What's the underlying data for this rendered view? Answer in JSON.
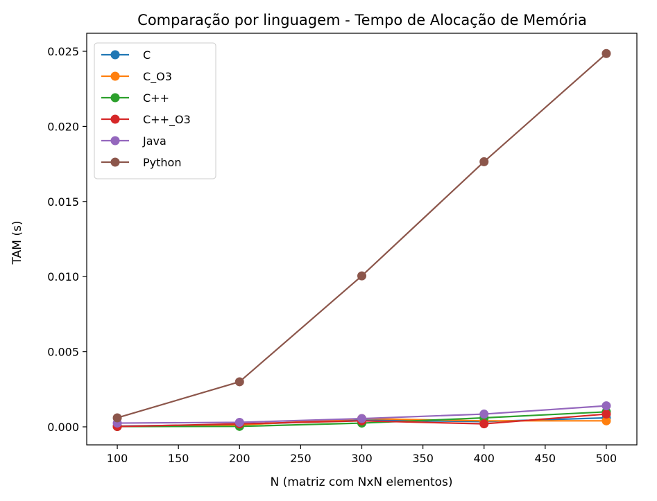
{
  "chart_data": {
    "type": "line",
    "title": "Comparação por linguagem - Tempo de Alocação de Memória",
    "xlabel": "N (matriz com NxN elementos)",
    "ylabel": "TAM (s)",
    "x": [
      100,
      200,
      300,
      400,
      500
    ],
    "xlim": [
      75,
      525
    ],
    "ylim": [
      -0.0012,
      0.0262
    ],
    "xticks": [
      100,
      150,
      200,
      250,
      300,
      350,
      400,
      450,
      500
    ],
    "yticks": [
      0.0,
      0.005,
      0.01,
      0.015,
      0.02,
      0.025
    ],
    "ytick_labels": [
      "0.000",
      "0.005",
      "0.010",
      "0.015",
      "0.020",
      "0.025"
    ],
    "grid": false,
    "legend_position": "upper-left",
    "series": [
      {
        "name": "C",
        "color": "#1f77b4",
        "values": [
          5e-05,
          0.00015,
          0.00045,
          0.00035,
          0.0006
        ]
      },
      {
        "name": "C_O3",
        "color": "#ff7f0e",
        "values": [
          3e-05,
          0.00012,
          0.00055,
          0.0004,
          0.0004
        ]
      },
      {
        "name": "C++",
        "color": "#2ca02c",
        "values": [
          2e-05,
          3e-05,
          0.00025,
          0.0006,
          0.001
        ]
      },
      {
        "name": "C++_O3",
        "color": "#d62728",
        "values": [
          2e-05,
          0.0002,
          0.0004,
          0.0002,
          0.00085
        ]
      },
      {
        "name": "Java",
        "color": "#9467bd",
        "values": [
          0.00025,
          0.0003,
          0.00055,
          0.00085,
          0.0014
        ]
      },
      {
        "name": "Python",
        "color": "#8c564b",
        "values": [
          0.0006,
          0.003,
          0.01005,
          0.01765,
          0.02485
        ]
      }
    ]
  }
}
